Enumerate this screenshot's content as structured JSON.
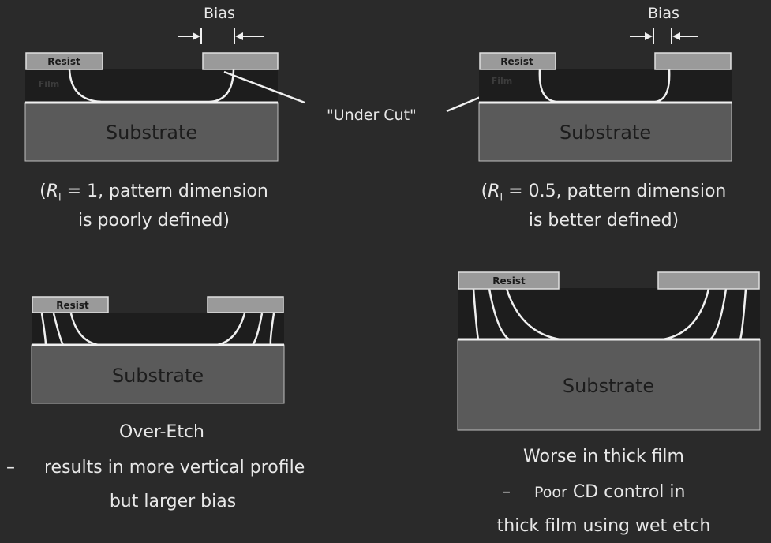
{
  "bias_label_left": "Bias",
  "bias_label_right": "Bias",
  "under_cut_label": "\"Under Cut\"",
  "resist_label": "Resist",
  "film_label": "Film",
  "substrate_label": "Substrate",
  "caption_top_left": {
    "open": "(",
    "r": "R",
    "sub": "l",
    "rest": " = 1, pattern dimension",
    "line2": "is poorly defined)"
  },
  "caption_top_right": {
    "open": "(",
    "r": "R",
    "sub": "l",
    "rest": " = 0.5, pattern dimension",
    "line2": "is better defined)"
  },
  "caption_bottom_left": {
    "title": "Over-Etch",
    "bullet": "–",
    "line1": "results in more vertical profile",
    "line2": "but larger bias"
  },
  "caption_bottom_right": {
    "title": "Worse in thick film",
    "bullet": "–",
    "poor": "Poor",
    "line1": " CD control in",
    "line2": "thick film using wet etch"
  }
}
